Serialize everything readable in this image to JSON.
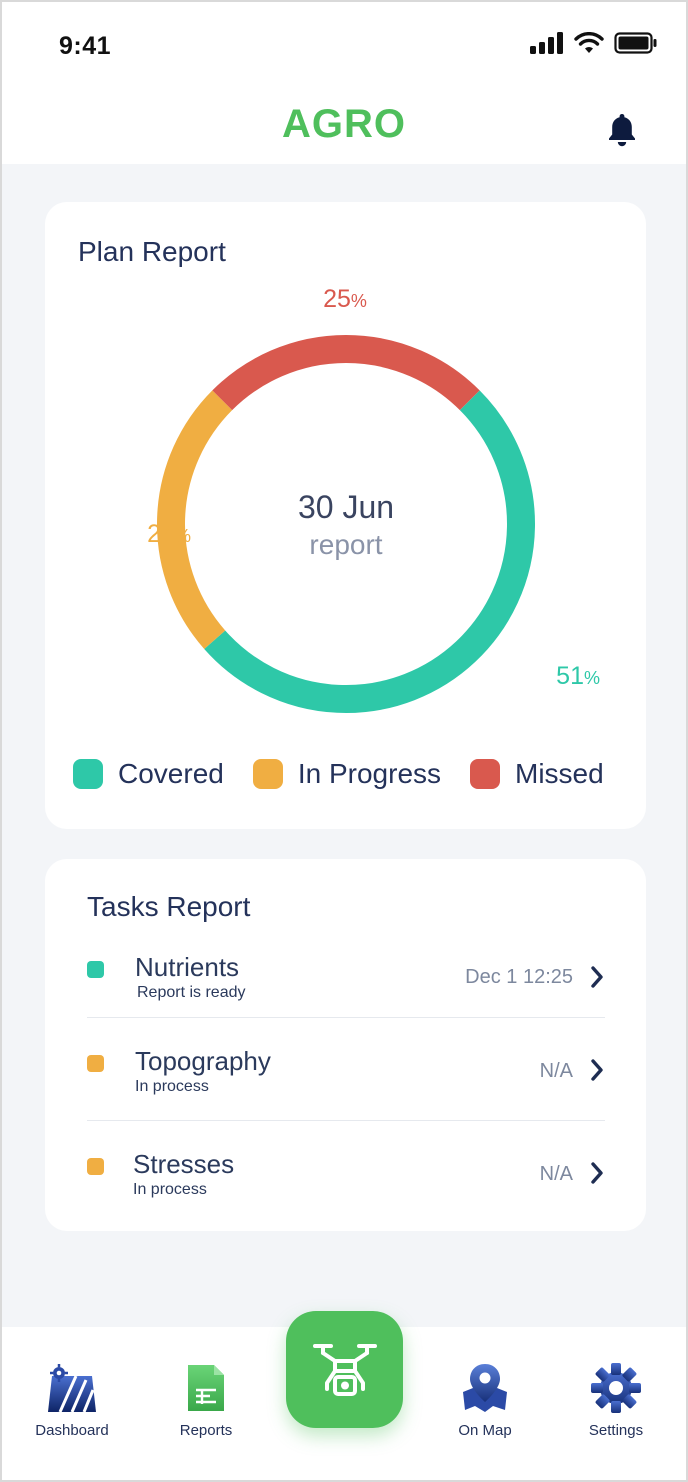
{
  "status_bar": {
    "time": "9:41"
  },
  "header": {
    "title": "AGRO"
  },
  "plan_report": {
    "title": "Plan Report",
    "center_date": "30 Jun",
    "center_caption": "report",
    "legend": [
      {
        "label": "Covered",
        "color": "#2ec8a8"
      },
      {
        "label": "In Progress",
        "color": "#f0ae42"
      },
      {
        "label": "Missed",
        "color": "#d9594e"
      }
    ]
  },
  "chart_data": {
    "type": "pie",
    "categories": [
      "Covered",
      "In Progress",
      "Missed"
    ],
    "values": [
      51,
      24,
      25
    ],
    "value_labels": [
      "51",
      "24",
      "25"
    ],
    "unit": "%",
    "colors": [
      "#2ec8a8",
      "#f0ae42",
      "#d9594e"
    ]
  },
  "tasks_report": {
    "title": "Tasks Report",
    "items": [
      {
        "name": "Nutrients",
        "status": "Report is ready",
        "date": "Dec 1 12:25",
        "color": "#2ec8a8"
      },
      {
        "name": "Topography",
        "status": "In process",
        "date": "N/A",
        "color": "#f0ae42"
      },
      {
        "name": "Stresses",
        "status": "In process",
        "date": "N/A",
        "color": "#f0ae42"
      }
    ]
  },
  "bottom_nav": {
    "items": [
      {
        "label": "Dashboard",
        "icon": "field-icon"
      },
      {
        "label": "Reports",
        "icon": "report-sheet-icon"
      },
      {
        "label": "",
        "icon": "drone-icon"
      },
      {
        "label": "On Map",
        "icon": "map-pin-icon"
      },
      {
        "label": "Settings",
        "icon": "gear-icon"
      }
    ]
  }
}
